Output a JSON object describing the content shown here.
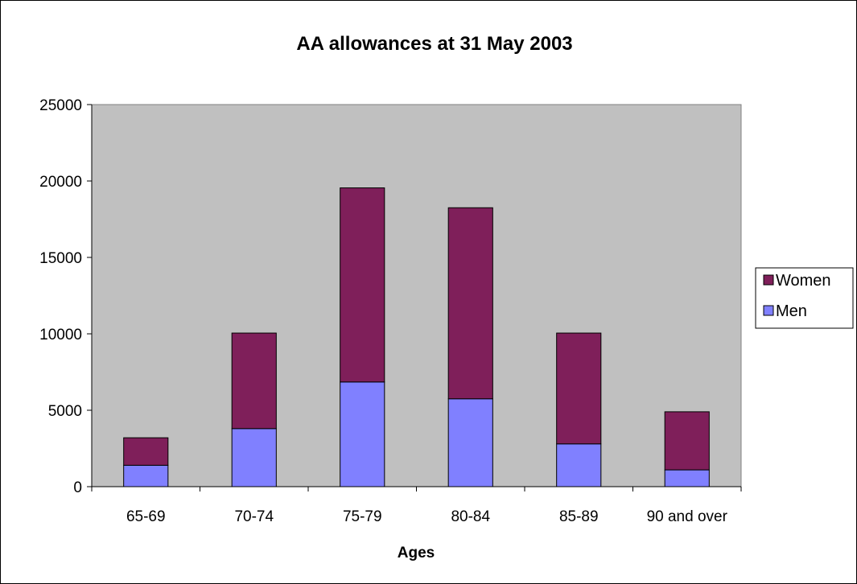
{
  "chart_data": {
    "type": "bar",
    "stacked": true,
    "title": "AA allowances at 31 May 2003",
    "xlabel": "Ages",
    "ylabel": "",
    "categories": [
      "65-69",
      "70-74",
      "75-79",
      "80-84",
      "85-89",
      "90 and over"
    ],
    "ylim": [
      0,
      25000
    ],
    "yticks": [
      "0",
      "5000",
      "10000",
      "15000",
      "20000",
      "25000"
    ],
    "grid": false,
    "plot_background": "#c0c0c0",
    "legend_position": "right",
    "series": [
      {
        "name": "Men",
        "color": "#8080ff",
        "values": [
          1400,
          3800,
          6850,
          5750,
          2800,
          1100
        ]
      },
      {
        "name": "Women",
        "color": "#7f1f5a",
        "values": [
          1800,
          6250,
          12700,
          12500,
          7250,
          3800
        ]
      }
    ],
    "legend": [
      {
        "label": "Women",
        "color": "#7f1f5a"
      },
      {
        "label": "Men",
        "color": "#8080ff"
      }
    ]
  }
}
